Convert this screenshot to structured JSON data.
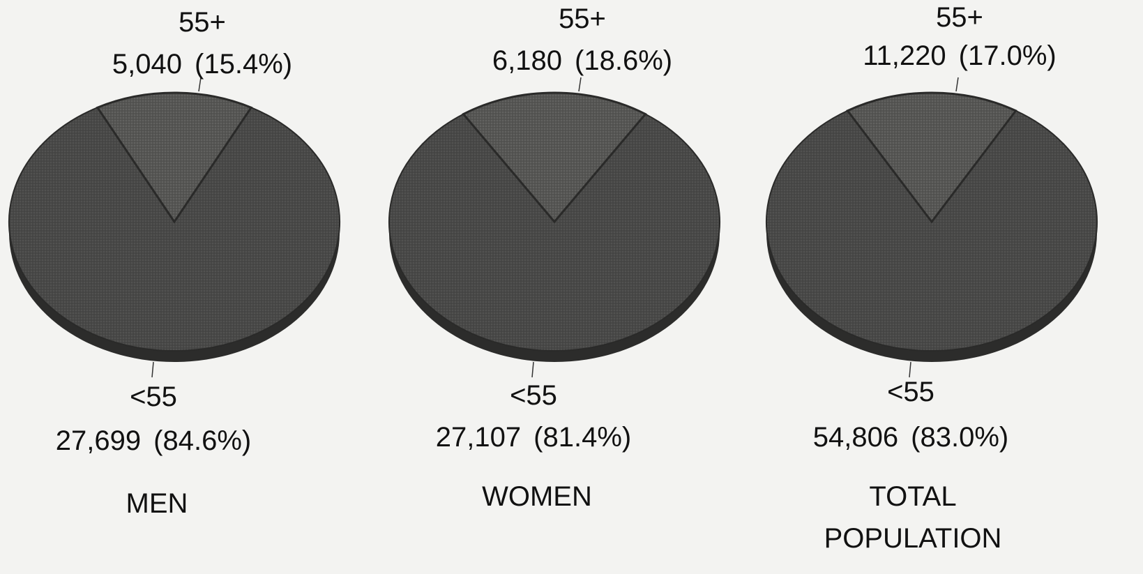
{
  "chart_data": [
    {
      "type": "pie",
      "categories": [
        "55+",
        "<55"
      ],
      "values": [
        5040,
        27699
      ],
      "value_labels": [
        "5,040",
        "27,699"
      ],
      "percent_labels": [
        "(15.4%)",
        "(84.6%)"
      ],
      "title": "MEN",
      "title_lines": [
        "MEN"
      ]
    },
    {
      "type": "pie",
      "categories": [
        "55+",
        "<55"
      ],
      "values": [
        6180,
        27107
      ],
      "value_labels": [
        "6,180",
        "27,107"
      ],
      "percent_labels": [
        "(18.6%)",
        "(81.4%)"
      ],
      "title": "WOMEN",
      "title_lines": [
        "WOMEN"
      ]
    },
    {
      "type": "pie",
      "categories": [
        "55+",
        "<55"
      ],
      "values": [
        11220,
        54806
      ],
      "value_labels": [
        "11,220",
        "54,806"
      ],
      "percent_labels": [
        "(17.0%)",
        "(83.0%)"
      ],
      "title": "TOTAL POPULATION",
      "title_lines": [
        "TOTAL",
        "POPULATION"
      ]
    }
  ],
  "colors": {
    "background": "#f3f3f1",
    "pie_top": "#4a4a49",
    "pie_side": "#2c2c2b",
    "slice_line": "#2a2a29",
    "text": "#111111"
  }
}
